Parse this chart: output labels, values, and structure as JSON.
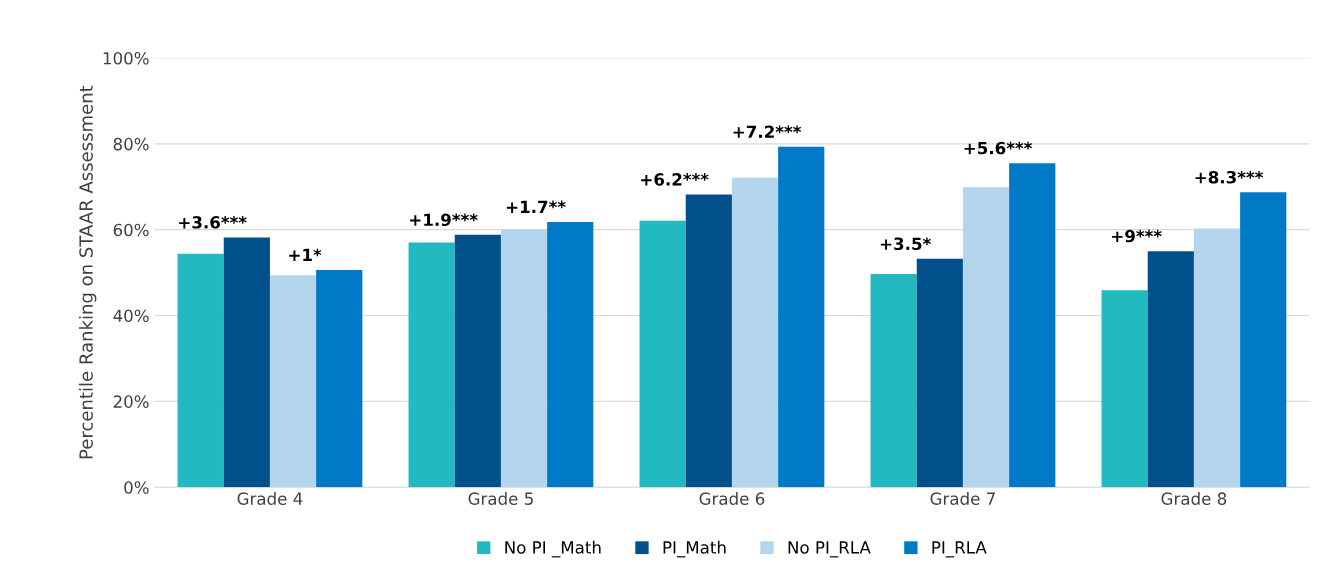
{
  "chart_data": {
    "type": "bar",
    "ylabel": "Percentile Ranking on STAAR Assessment",
    "categories": [
      "Grade 4",
      "Grade 5",
      "Grade 6",
      "Grade 7",
      "Grade 8"
    ],
    "ylim": [
      0,
      100
    ],
    "yticks": [
      {
        "value": 0,
        "label": "0%"
      },
      {
        "value": 20,
        "label": "20%"
      },
      {
        "value": 40,
        "label": "40%"
      },
      {
        "value": 60,
        "label": "60%"
      },
      {
        "value": 80,
        "label": "80%"
      },
      {
        "value": 100,
        "label": "100%"
      }
    ],
    "grid": "y",
    "legend": "bottom",
    "series": [
      {
        "name": "No PI _Math",
        "color": "#23b9c1",
        "values": [
          54.4,
          57.0,
          62.1,
          49.7,
          45.9
        ]
      },
      {
        "name": "PI_Math",
        "color": "#00508c",
        "values": [
          58.2,
          58.8,
          68.2,
          53.2,
          55.0
        ]
      },
      {
        "name": "No PI_RLA",
        "color": "#b3d6ee",
        "values": [
          49.4,
          60.1,
          72.1,
          69.9,
          60.3
        ]
      },
      {
        "name": "PI_RLA",
        "color": "#007ac6",
        "values": [
          50.6,
          61.8,
          79.3,
          75.5,
          68.7
        ]
      }
    ],
    "annotations": [
      "+3.6***",
      "+1*",
      "+1.9***",
      "+1.7**",
      "+6.2***",
      "+7.2***",
      "+3.5*",
      "+5.6***",
      "+9***",
      "+8.3***"
    ]
  }
}
